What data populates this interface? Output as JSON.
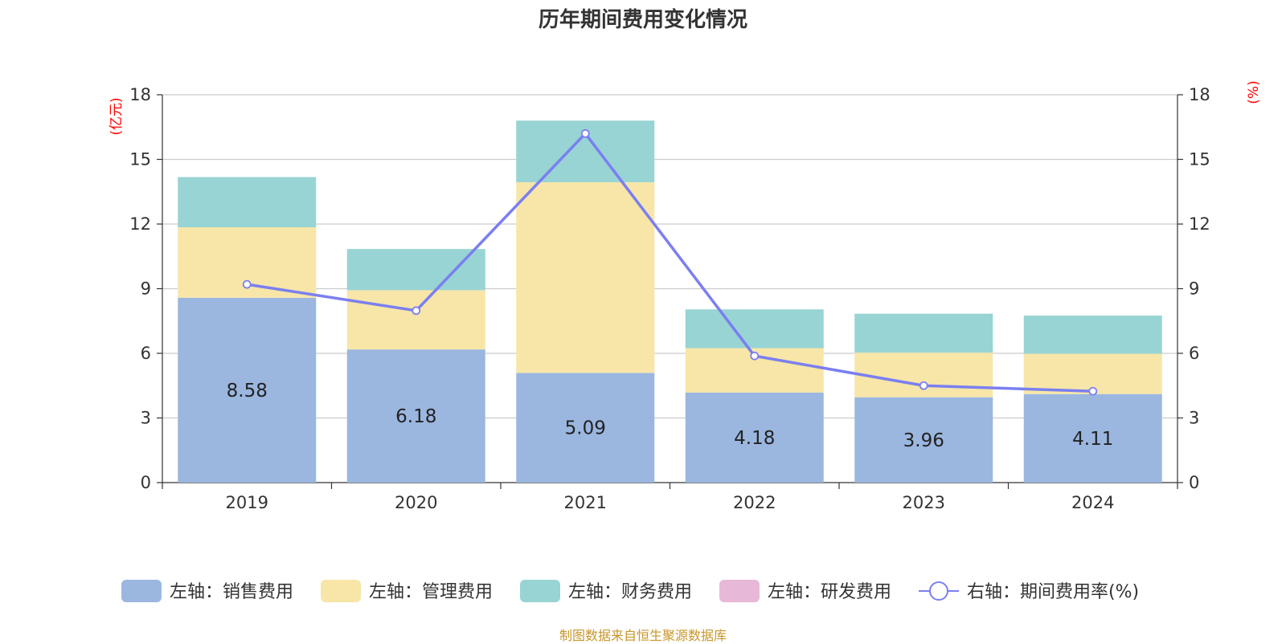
{
  "chart_data": {
    "type": "bar",
    "title": "历年期间费用变化情况",
    "categories": [
      "2019",
      "2020",
      "2021",
      "2022",
      "2023",
      "2024"
    ],
    "y_left_label": "(亿元)",
    "y_right_label": "(%)",
    "y_left_range": [
      0,
      18
    ],
    "y_right_range": [
      0,
      18
    ],
    "y_ticks": [
      0,
      3,
      6,
      9,
      12,
      15,
      18
    ],
    "grid": true,
    "legend_position": "bottom",
    "series": [
      {
        "name": "左轴：销售费用",
        "type": "bar",
        "stack": true,
        "axis": "left",
        "color": "#9bb7e0",
        "values": [
          8.58,
          6.18,
          5.09,
          4.18,
          3.96,
          4.11
        ],
        "labels_shown": true
      },
      {
        "name": "左轴：管理费用",
        "type": "bar",
        "stack": true,
        "axis": "left",
        "color": "#f7e6a8",
        "values": [
          3.27,
          2.75,
          8.85,
          2.06,
          2.07,
          1.87
        ]
      },
      {
        "name": "左轴：财务费用",
        "type": "bar",
        "stack": true,
        "axis": "left",
        "color": "#98d4d4",
        "values": [
          2.33,
          1.91,
          2.86,
          1.8,
          1.81,
          1.77
        ]
      },
      {
        "name": "左轴：研发费用",
        "type": "bar",
        "stack": true,
        "axis": "left",
        "color": "#e8b8d8",
        "values": [
          0,
          0,
          0,
          0,
          0,
          0
        ]
      },
      {
        "name": "右轴：期间费用率(%)",
        "type": "line",
        "axis": "right",
        "color": "#7b7ff0",
        "values": [
          9.2,
          7.98,
          16.2,
          5.88,
          4.5,
          4.24
        ]
      }
    ]
  },
  "source_note": "制图数据来自恒生聚源数据库"
}
